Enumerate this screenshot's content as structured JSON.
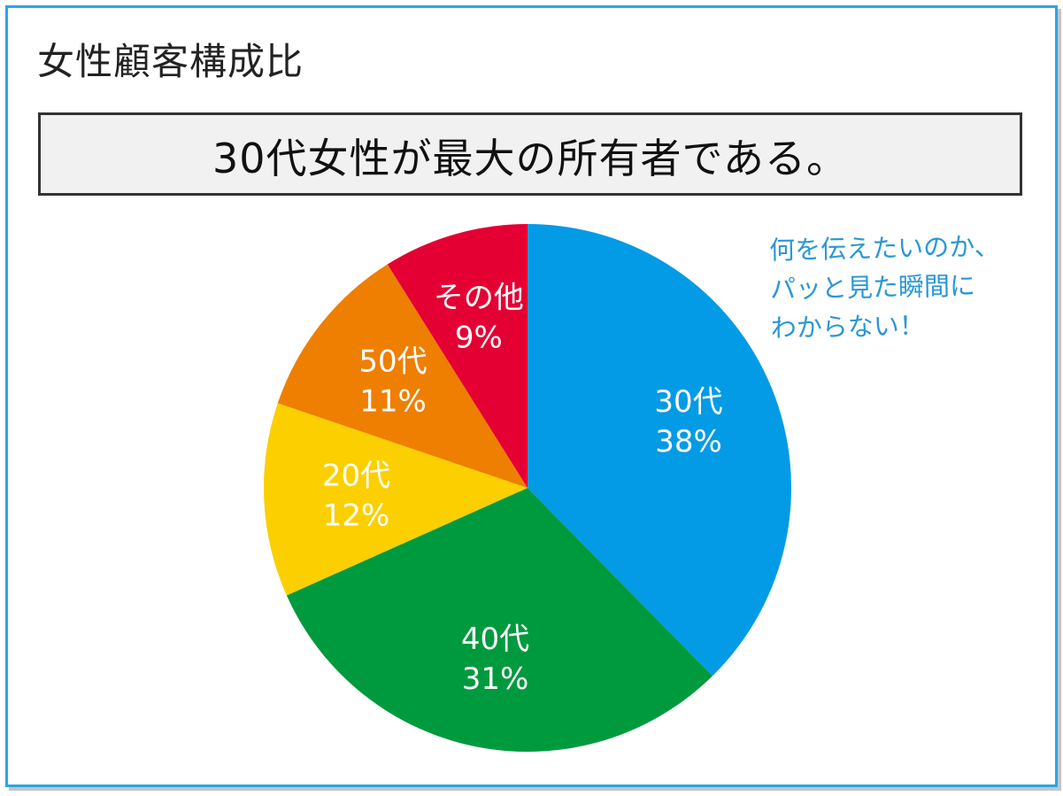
{
  "title": "女性顧客構成比",
  "headline": "30代女性が最大の所有者である。",
  "annotation": {
    "lines": [
      "何を伝えたいのか、",
      "パッと見た瞬間に",
      "わからない！"
    ],
    "color": "#2b97d4"
  },
  "colors": {
    "frame": "#2ea5df",
    "headline_bg": "#f1f1f1",
    "headline_border": "#333333"
  },
  "chart_data": {
    "type": "pie",
    "title": "女性顧客構成比",
    "slices": [
      {
        "label": "30代",
        "value_label": "38%",
        "value": 38,
        "color": "#039be5"
      },
      {
        "label": "40代",
        "value_label": "31%",
        "value": 31,
        "color": "#009a3e"
      },
      {
        "label": "20代",
        "value_label": "12%",
        "value": 12,
        "color": "#fbcf00"
      },
      {
        "label": "50代",
        "value_label": "11%",
        "value": 11,
        "color": "#ee7f00"
      },
      {
        "label": "その他",
        "value_label": "9%",
        "value": 9,
        "color": "#e50034"
      }
    ]
  }
}
